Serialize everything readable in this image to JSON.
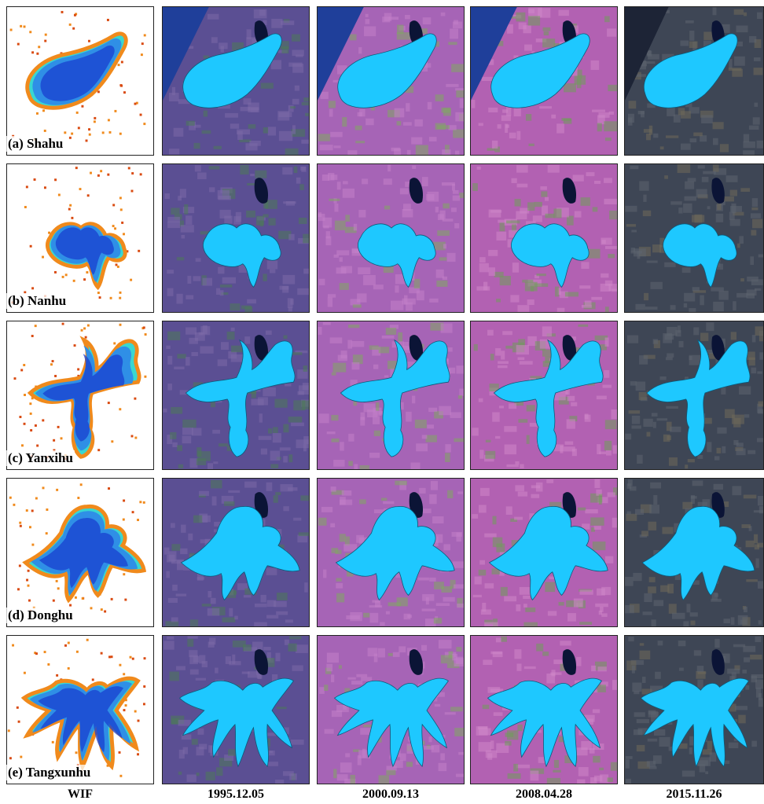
{
  "rows": [
    {
      "label": "(a) Shahu",
      "lake": "shahu"
    },
    {
      "label": "(b) Nanhu",
      "lake": "nanhu"
    },
    {
      "label": "(c) Yanxihu",
      "lake": "yanxihu"
    },
    {
      "label": "(d) Donghu",
      "lake": "donghu"
    },
    {
      "label": "(e) Tangxunhu",
      "lake": "tangxunhu"
    }
  ],
  "columns": [
    {
      "label": "WIF",
      "style": "wif"
    },
    {
      "label": "1995.12.05",
      "style": "landsat-1995"
    },
    {
      "label": "2000.09.13",
      "style": "landsat-2000"
    },
    {
      "label": "2008.04.28",
      "style": "landsat-2008"
    },
    {
      "label": "2015.11.26",
      "style": "landsat-2015"
    }
  ],
  "colors": {
    "lake_fill": "#1ec8ff",
    "wif_deep": "#1a3fcf",
    "wif_mid": "#2f8fe6",
    "wif_edge": "#39d7d0",
    "wif_low": "#f08a1c",
    "wif_min": "#d94a10",
    "river": "#1f3f9a",
    "shadow_water": "#0b1436"
  }
}
